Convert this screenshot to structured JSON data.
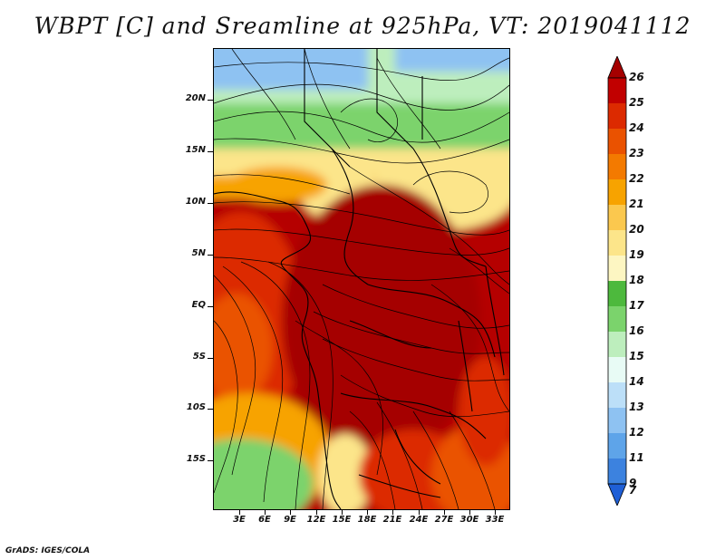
{
  "title": "WBPT [C] and Sreamline at 925hPa, VT: 2019041112",
  "footer": "GrADS: IGES/COLA",
  "map": {
    "lat_labels": [
      "20N",
      "15N",
      "10N",
      "5N",
      "EQ",
      "5S",
      "10S",
      "15S"
    ],
    "lon_labels": [
      "3E",
      "6E",
      "9E",
      "12E",
      "15E",
      "18E",
      "21E",
      "24E",
      "27E",
      "30E",
      "33E"
    ]
  },
  "colorbar": {
    "levels": [
      "26",
      "25",
      "24",
      "23",
      "22",
      "21",
      "20",
      "19",
      "18",
      "17",
      "16",
      "15",
      "14",
      "13",
      "12",
      "11",
      "9",
      "7"
    ],
    "colors": [
      "#a50000",
      "#c10000",
      "#dc2a00",
      "#ea5200",
      "#f37a00",
      "#f7a300",
      "#fbc84e",
      "#fce58a",
      "#fdf6c2",
      "#4db93d",
      "#7bd36c",
      "#bdeebd",
      "#e8fbf5",
      "#bcdff8",
      "#8ec2f2",
      "#5ea4e9",
      "#3c82df",
      "#1f5fd6"
    ]
  }
}
